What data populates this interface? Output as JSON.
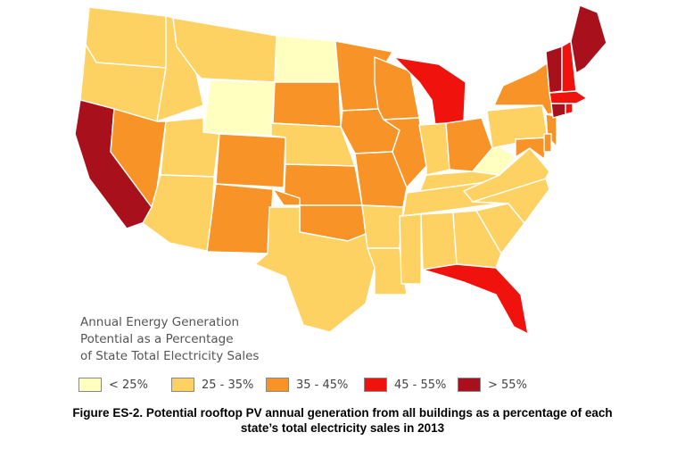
{
  "legend": {
    "title_lines": [
      "Annual Energy Generation",
      "Potential as a Percentage",
      "of State Total Electricity Sales"
    ],
    "items": [
      {
        "label": "< 25%",
        "color": "#ffffc0"
      },
      {
        "label": "25 - 35%",
        "color": "#fdd262"
      },
      {
        "label": "35 - 45%",
        "color": "#f89427"
      },
      {
        "label": "45 - 55%",
        "color": "#f0120d"
      },
      {
        "label": "> 55%",
        "color": "#a8101c"
      }
    ]
  },
  "caption_lines": [
    "Figure ES-2. Potential rooftop PV annual generation from all buildings as a percentage of each",
    "state’s total electricity sales in 2013"
  ],
  "states": {
    "WA": "25 - 35%",
    "OR": "25 - 35%",
    "CA": "> 55%",
    "ID": "25 - 35%",
    "NV": "35 - 45%",
    "MT": "25 - 35%",
    "WY": "< 25%",
    "UT": "25 - 35%",
    "AZ": "25 - 35%",
    "CO": "35 - 45%",
    "NM": "35 - 45%",
    "ND": "< 25%",
    "SD": "35 - 45%",
    "NE": "25 - 35%",
    "KS": "35 - 45%",
    "OK": "35 - 45%",
    "TX": "25 - 35%",
    "MN": "35 - 45%",
    "IA": "35 - 45%",
    "MO": "35 - 45%",
    "AR": "25 - 35%",
    "LA": "25 - 35%",
    "WI": "35 - 45%",
    "IL": "35 - 45%",
    "MI": "45 - 55%",
    "IN": "25 - 35%",
    "OH": "35 - 45%",
    "KY": "25 - 35%",
    "TN": "25 - 35%",
    "MS": "25 - 35%",
    "AL": "25 - 35%",
    "GA": "25 - 35%",
    "FL": "45 - 55%",
    "SC": "25 - 35%",
    "NC": "25 - 35%",
    "VA": "25 - 35%",
    "WV": "< 25%",
    "PA": "25 - 35%",
    "NY": "35 - 45%",
    "NJ": "35 - 45%",
    "MD": "35 - 45%",
    "DE": "35 - 45%",
    "VT": "> 55%",
    "NH": "45 - 55%",
    "ME": "> 55%",
    "MA": "45 - 55%",
    "CT": "> 55%",
    "RI": "45 - 55%"
  }
}
